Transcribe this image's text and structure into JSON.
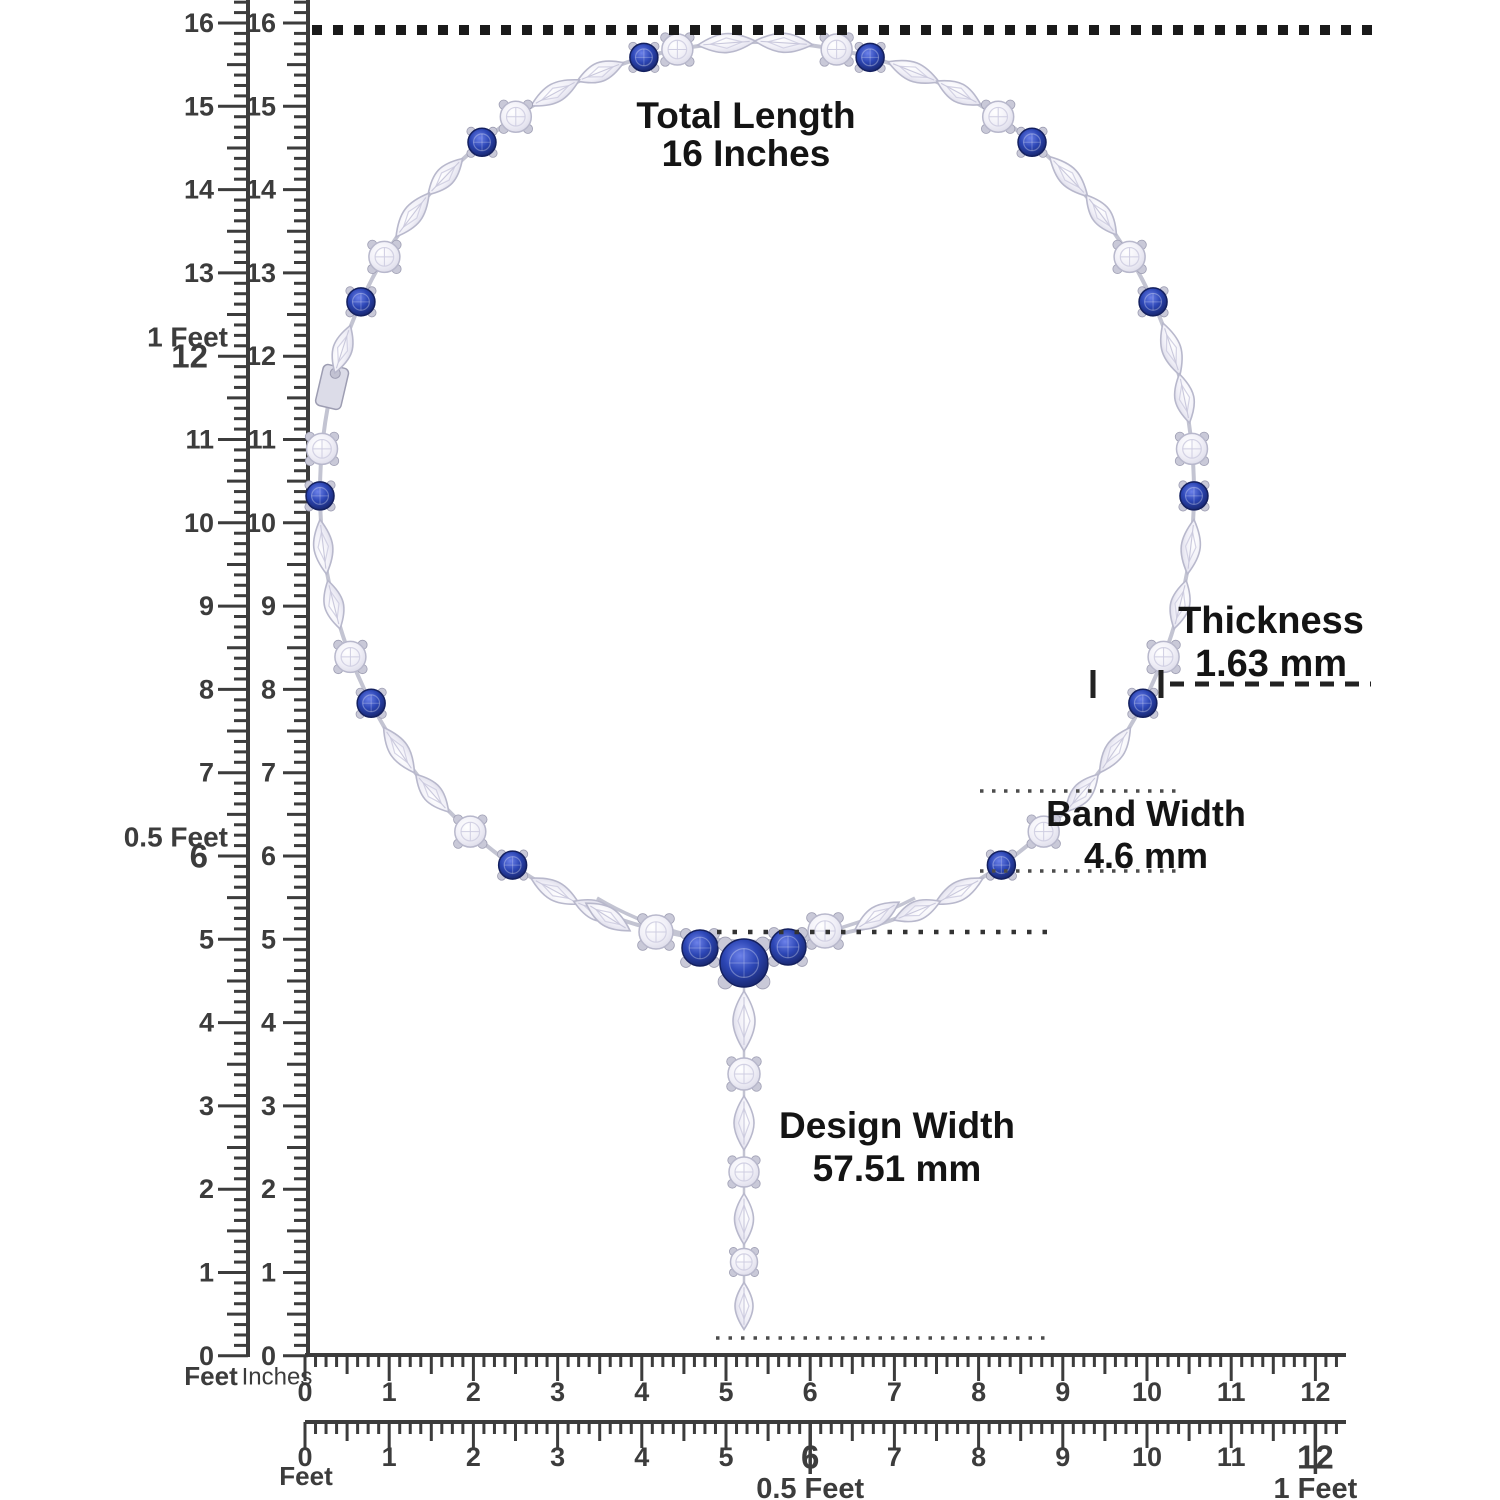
{
  "annotations": {
    "total_length": {
      "title": "Total Length",
      "value": "16 Inches"
    },
    "thickness": {
      "title": "Thickness",
      "value": "1.63 mm"
    },
    "band_width": {
      "title": "Band Width",
      "value": "4.6 mm"
    },
    "design_width": {
      "title": "Design Width",
      "value": "57.51 mm"
    }
  },
  "rulers": {
    "vertical_feet": {
      "unit": "Feet",
      "inch_numbers": [
        "16",
        "15",
        "14",
        "13",
        "12",
        "11",
        "10",
        "9",
        "8",
        "7",
        "6",
        "5",
        "4",
        "3",
        "2",
        "1",
        "0"
      ],
      "feet_marks": [
        {
          "inch": 12,
          "number": "12",
          "label": "1 Feet"
        },
        {
          "inch": 6,
          "number": "6",
          "label": "0.5 Feet"
        }
      ]
    },
    "vertical_inches": {
      "unit": "Inches",
      "inch_numbers": [
        "16",
        "15",
        "14",
        "13",
        "12",
        "11",
        "10",
        "9",
        "8",
        "7",
        "6",
        "5",
        "4",
        "3",
        "2",
        "1",
        "0"
      ]
    },
    "horizontal_inches": {
      "numbers": [
        "0",
        "1",
        "2",
        "3",
        "4",
        "5",
        "6",
        "7",
        "8",
        "9",
        "10",
        "11",
        "12"
      ]
    },
    "horizontal_feet": {
      "unit": "Feet",
      "numbers": [
        "0",
        "1",
        "2",
        "3",
        "4",
        "5",
        "6",
        "7",
        "8",
        "9",
        "10",
        "11",
        "12"
      ],
      "feet_marks": [
        {
          "inch": 6,
          "label": "0.5 Feet"
        },
        {
          "inch": 12,
          "label": "1 Feet"
        }
      ]
    }
  },
  "necklace": {
    "colors": {
      "sapphire_light": "#6d82ea",
      "sapphire_mid": "#2c46b5",
      "sapphire_dark": "#14205f",
      "diamond_white": "#ffffff",
      "diamond_body": "#efeef6",
      "diamond_edge": "#b8b8cc",
      "metal": "#c9c9d8",
      "metal_dark": "#9d9db2",
      "chain": "#c3c4d2"
    },
    "ruler_ink": "#3c3c3c",
    "dimension_ink": "#1a1a1a"
  }
}
